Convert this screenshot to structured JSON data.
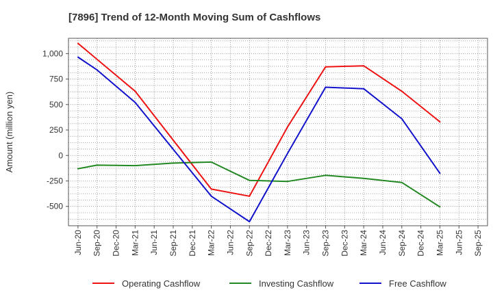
{
  "chart_data": {
    "type": "line",
    "title": "[7896]  Trend of 12-Month Moving Sum of Cashflows",
    "ylabel": "Amount (million yen)",
    "xlabel": "",
    "ylim": [
      -690,
      1150
    ],
    "yticks": [
      1000,
      750,
      500,
      250,
      0,
      -250,
      -500
    ],
    "ytick_labels": [
      "1,000",
      "750",
      "500",
      "250",
      "0",
      "-250",
      "-500"
    ],
    "categories": [
      "Jun-20",
      "Sep-20",
      "Dec-20",
      "Mar-21",
      "Jun-21",
      "Sep-21",
      "Dec-21",
      "Mar-22",
      "Jun-22",
      "Sep-22",
      "Dec-22",
      "Mar-23",
      "Jun-23",
      "Sep-23",
      "Dec-23",
      "Mar-24",
      "Jun-24",
      "Sep-24",
      "Dec-24",
      "Mar-25",
      "Jun-25",
      "Sep-25"
    ],
    "grid": true,
    "legend_position": "bottom",
    "series": [
      {
        "name": "Operating Cashflow",
        "color": "#ee1111",
        "values": [
          1100,
          null,
          null,
          630,
          null,
          null,
          null,
          -330,
          null,
          -400,
          null,
          280,
          null,
          870,
          null,
          880,
          null,
          630,
          null,
          330,
          null,
          null
        ]
      },
      {
        "name": "Investing Cashflow",
        "color": "#228822",
        "values": [
          -130,
          -95,
          null,
          -100,
          null,
          -75,
          null,
          -65,
          null,
          -245,
          null,
          -255,
          null,
          -195,
          null,
          -225,
          null,
          -265,
          null,
          -505,
          null,
          null
        ]
      },
      {
        "name": "Free Cashflow",
        "color": "#1111cc",
        "values": [
          965,
          840,
          null,
          520,
          null,
          null,
          null,
          -400,
          null,
          -650,
          null,
          20,
          null,
          670,
          null,
          655,
          null,
          360,
          null,
          -175,
          null,
          null
        ]
      }
    ]
  }
}
